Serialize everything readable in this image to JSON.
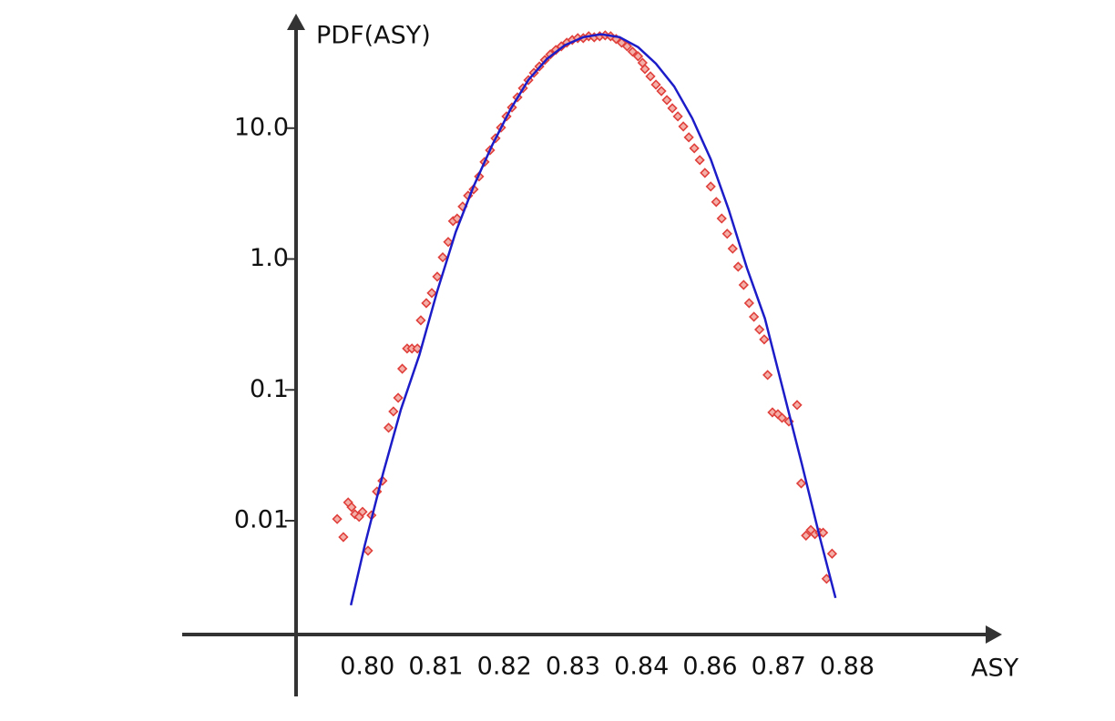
{
  "chart_data": {
    "type": "scatter",
    "title": "PDF(ASY)",
    "x_label": "ASY",
    "log_y": true,
    "xlim": [
      0.7896,
      0.9026
    ],
    "ylim": [
      0.00135,
      75
    ],
    "xticks": [
      {
        "value": 0.8,
        "label": "0.80"
      },
      0.81,
      0.82,
      0.83,
      0.84,
      0.86,
      0.87,
      0.88
    ],
    "yticks": [
      {
        "value": 10,
        "label": "10.0"
      },
      {
        "value": 1,
        "label": "1.0"
      },
      0.1,
      0.01
    ],
    "series": [
      {
        "type": "scatter",
        "color": "#e0403c",
        "x": [
          0.7956,
          0.7965,
          0.7972,
          0.7977,
          0.7982,
          0.7988,
          0.7993,
          0.8001,
          0.8006,
          0.8014,
          0.8022,
          0.8031,
          0.8038,
          0.8045,
          0.8051,
          0.8058,
          0.8065,
          0.8073,
          0.8078,
          0.8086,
          0.8094,
          0.8102,
          0.811,
          0.8118,
          0.8125,
          0.8131,
          0.8139,
          0.8147,
          0.8155,
          0.8163,
          0.8171,
          0.8179,
          0.8187,
          0.8195,
          0.8203,
          0.8211,
          0.8219,
          0.8227,
          0.8235,
          0.8243,
          0.8251,
          0.8259,
          0.8267,
          0.8275,
          0.8283,
          0.8291,
          0.8299,
          0.8307,
          0.8315,
          0.8323,
          0.8331,
          0.8339,
          0.8347,
          0.8355,
          0.8363,
          0.8371,
          0.8379,
          0.8387,
          0.8395,
          0.8403,
          0.841,
          0.8426,
          0.8442,
          0.8458,
          0.8474,
          0.849,
          0.8506,
          0.8522,
          0.8538,
          0.8554,
          0.857,
          0.8585,
          0.8601,
          0.8609,
          0.8617,
          0.8625,
          0.8633,
          0.8641,
          0.8649,
          0.8657,
          0.8664,
          0.8672,
          0.8679,
          0.8684,
          0.8691,
          0.8699,
          0.8705,
          0.8715,
          0.8727,
          0.8733,
          0.874,
          0.8747,
          0.8753,
          0.876,
          0.8765,
          0.877,
          0.8778
        ],
        "values": [
          0.0103,
          0.0075,
          0.0138,
          0.0127,
          0.0112,
          0.0107,
          0.0117,
          0.0059,
          0.011,
          0.0167,
          0.0202,
          0.0513,
          0.0684,
          0.0869,
          0.145,
          0.207,
          0.207,
          0.207,
          0.34,
          0.46,
          0.55,
          0.733,
          1.03,
          1.35,
          1.95,
          2.04,
          2.52,
          3.05,
          3.41,
          4.27,
          5.52,
          6.79,
          8.37,
          10.1,
          12.3,
          14.4,
          17.2,
          20.2,
          23.3,
          26.5,
          29.6,
          33.2,
          36.6,
          39.6,
          42.2,
          45.0,
          47.2,
          48.8,
          48.8,
          50.4,
          49.5,
          50.4,
          51.2,
          50.4,
          48.0,
          45.0,
          42.2,
          38.4,
          35.4,
          31.6,
          28.3,
          24.9,
          21.5,
          19.2,
          16.4,
          14.2,
          12.3,
          10.3,
          8.51,
          7.02,
          5.7,
          4.55,
          3.58,
          2.73,
          2.04,
          1.56,
          1.2,
          0.873,
          0.634,
          0.46,
          0.362,
          0.289,
          0.243,
          0.13,
          0.0673,
          0.0652,
          0.0611,
          0.0573,
          0.0766,
          0.0193,
          0.0077,
          0.0085,
          0.0079,
          0.0081,
          0.0081,
          0.0036,
          0.0056
        ]
      },
      {
        "type": "line",
        "color": "#1c1cc8",
        "x": [
          0.7976,
          0.7996,
          0.8023,
          0.8049,
          0.8076,
          0.8102,
          0.8129,
          0.8155,
          0.8182,
          0.8209,
          0.8235,
          0.8262,
          0.8288,
          0.8315,
          0.8341,
          0.8368,
          0.8395,
          0.8442,
          0.8495,
          0.8548,
          0.8601,
          0.8627,
          0.8654,
          0.868,
          0.8707,
          0.8734,
          0.876,
          0.8783
        ],
        "values": [
          0.00226,
          0.0064,
          0.0231,
          0.0708,
          0.185,
          0.568,
          1.61,
          3.59,
          7.38,
          14.0,
          23.4,
          33.8,
          43.0,
          49.6,
          52.1,
          49.6,
          41.6,
          31.2,
          20.9,
          11.9,
          5.8,
          2.4,
          0.848,
          0.351,
          0.0975,
          0.027,
          0.0075,
          0.00257
        ]
      }
    ]
  }
}
